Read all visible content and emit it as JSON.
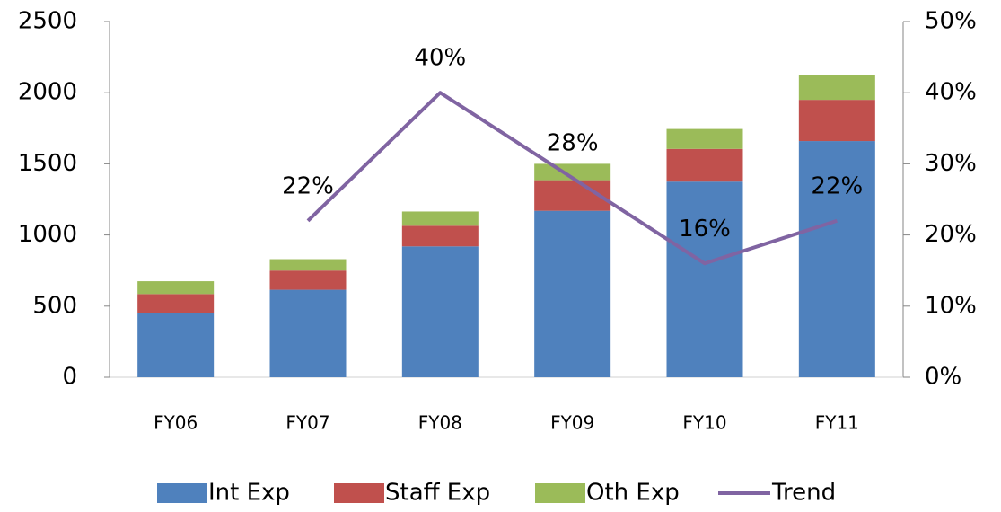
{
  "chart_data": {
    "type": "bar",
    "stacked": true,
    "categories": [
      "FY06",
      "FY07",
      "FY08",
      "FY09",
      "FY10",
      "FY11"
    ],
    "series": [
      {
        "name": "Int Exp",
        "color": "#4f81bd",
        "values": [
          450,
          615,
          920,
          1170,
          1375,
          1660
        ]
      },
      {
        "name": "Staff Exp",
        "color": "#c0504d",
        "values": [
          135,
          135,
          145,
          215,
          230,
          290
        ]
      },
      {
        "name": "Oth Exp",
        "color": "#9bbb59",
        "values": [
          90,
          80,
          100,
          115,
          140,
          175
        ]
      },
      {
        "name": "Trend",
        "color": "#8064a2",
        "type": "line",
        "axis": "y2",
        "values": [
          null,
          22,
          40,
          28,
          16,
          22
        ],
        "value_labels": [
          null,
          "22%",
          "40%",
          "28%",
          "16%",
          "22%"
        ]
      }
    ],
    "ylim": [
      0,
      2500
    ],
    "yticks": [
      0,
      500,
      1000,
      1500,
      2000,
      2500
    ],
    "y2lim": [
      0,
      50
    ],
    "y2ticks": [
      {
        "value": 0,
        "label": "0%"
      },
      {
        "value": 10,
        "label": "10%"
      },
      {
        "value": 20,
        "label": "20%"
      },
      {
        "value": 30,
        "label": "30%"
      },
      {
        "value": 40,
        "label": "40%"
      },
      {
        "value": 50,
        "label": "50%"
      }
    ],
    "grid": false,
    "legend": "bottom"
  }
}
